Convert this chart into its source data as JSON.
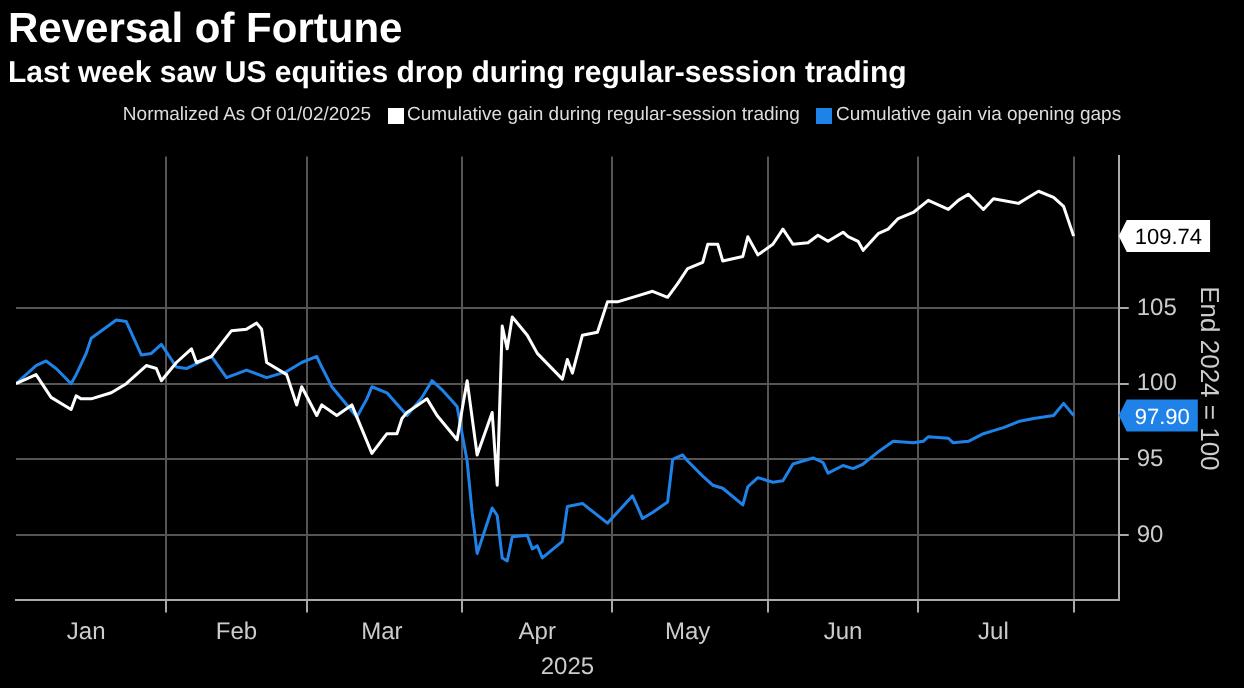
{
  "chart_data": {
    "type": "line",
    "title": "Reversal of Fortune",
    "subtitle": "Last week saw US equities drop during regular-session trading",
    "legend_title": "Normalized As Of 01/02/2025",
    "xlabel": "2025",
    "ylabel": "End 2024 = 100",
    "legend": "top",
    "grid": true,
    "line_style": "solid",
    "marker": "none",
    "xlim": [
      "2025-01-02",
      "2025-08-10"
    ],
    "xticks": [
      {
        "value": "2025-01-16",
        "label": "Jan"
      },
      {
        "value": "2025-02-01",
        "label": null
      },
      {
        "value": "2025-02-15",
        "label": "Feb"
      },
      {
        "value": "2025-03-01",
        "label": null
      },
      {
        "value": "2025-03-16",
        "label": "Mar"
      },
      {
        "value": "2025-04-01",
        "label": null
      },
      {
        "value": "2025-04-16",
        "label": "Apr"
      },
      {
        "value": "2025-05-01",
        "label": null
      },
      {
        "value": "2025-05-16",
        "label": "May"
      },
      {
        "value": "2025-06-01",
        "label": null
      },
      {
        "value": "2025-06-16",
        "label": "Jun"
      },
      {
        "value": "2025-07-01",
        "label": null
      },
      {
        "value": "2025-07-16",
        "label": "Jul"
      },
      {
        "value": "2025-08-01",
        "label": null
      }
    ],
    "ylim": [
      85.7,
      115
    ],
    "yticks": [
      90,
      95,
      100,
      105
    ],
    "annotations": [
      {
        "text": "109.74",
        "x": "2025-08-01",
        "y": 109.74
      },
      {
        "text": "97.90",
        "x": "2025-08-01",
        "y": 97.9
      }
    ],
    "series": [
      {
        "name": "Cumulative gain during regular-session trading",
        "color": "#ffffff",
        "x": [
          "2025-01-02",
          "2025-01-06",
          "2025-01-09",
          "2025-01-13",
          "2025-01-14",
          "2025-01-15",
          "2025-01-17",
          "2025-01-21",
          "2025-01-24",
          "2025-01-28",
          "2025-01-30",
          "2025-01-31",
          "2025-02-03",
          "2025-02-06",
          "2025-02-07",
          "2025-02-10",
          "2025-02-14",
          "2025-02-17",
          "2025-02-19",
          "2025-02-20",
          "2025-02-21",
          "2025-02-25",
          "2025-02-27",
          "2025-02-28",
          "2025-03-03",
          "2025-03-04",
          "2025-03-07",
          "2025-03-10",
          "2025-03-14",
          "2025-03-17",
          "2025-03-19",
          "2025-03-20",
          "2025-03-21",
          "2025-03-25",
          "2025-03-27",
          "2025-03-31",
          "2025-04-01",
          "2025-04-02",
          "2025-04-04",
          "2025-04-07",
          "2025-04-08",
          "2025-04-09",
          "2025-04-10",
          "2025-04-11",
          "2025-04-14",
          "2025-04-16",
          "2025-04-21",
          "2025-04-22",
          "2025-04-23",
          "2025-04-25",
          "2025-04-28",
          "2025-04-30",
          "2025-05-02",
          "2025-05-06",
          "2025-05-09",
          "2025-05-12",
          "2025-05-14",
          "2025-05-16",
          "2025-05-19",
          "2025-05-20",
          "2025-05-22",
          "2025-05-23",
          "2025-05-27",
          "2025-05-28",
          "2025-05-30",
          "2025-06-02",
          "2025-06-04",
          "2025-06-06",
          "2025-06-09",
          "2025-06-11",
          "2025-06-13",
          "2025-06-16",
          "2025-06-17",
          "2025-06-19",
          "2025-06-20",
          "2025-06-23",
          "2025-06-25",
          "2025-06-27",
          "2025-06-30",
          "2025-07-03",
          "2025-07-07",
          "2025-07-09",
          "2025-07-11",
          "2025-07-14",
          "2025-07-16",
          "2025-07-21",
          "2025-07-23",
          "2025-07-25",
          "2025-07-28",
          "2025-07-30",
          "2025-08-01"
        ],
        "values": [
          100.0,
          100.6,
          99.1,
          98.3,
          99.2,
          99.0,
          99.0,
          99.4,
          100.0,
          101.2,
          101.0,
          100.2,
          101.4,
          102.3,
          101.4,
          101.8,
          103.5,
          103.6,
          104.0,
          103.6,
          101.4,
          100.6,
          98.6,
          99.8,
          97.9,
          98.6,
          97.9,
          98.6,
          95.4,
          96.7,
          96.7,
          97.7,
          98.1,
          99.0,
          97.9,
          96.3,
          98.3,
          100.2,
          95.3,
          98.1,
          93.3,
          103.8,
          102.3,
          104.4,
          103.2,
          102.0,
          100.3,
          101.6,
          100.7,
          103.2,
          103.4,
          105.4,
          105.4,
          105.8,
          106.1,
          105.7,
          106.6,
          107.6,
          108.0,
          109.2,
          109.2,
          108.1,
          108.4,
          109.7,
          108.5,
          109.2,
          110.2,
          109.2,
          109.3,
          109.8,
          109.4,
          110.0,
          109.7,
          109.4,
          108.8,
          109.9,
          110.2,
          110.9,
          111.3,
          112.1,
          111.5,
          112.1,
          112.5,
          111.5,
          112.2,
          111.9,
          112.3,
          112.7,
          112.3,
          111.7,
          109.74
        ]
      },
      {
        "name": "Cumulative gain via opening gaps",
        "color": "#1f82e8",
        "x": [
          "2025-01-02",
          "2025-01-06",
          "2025-01-08",
          "2025-01-10",
          "2025-01-13",
          "2025-01-14",
          "2025-01-16",
          "2025-01-17",
          "2025-01-22",
          "2025-01-24",
          "2025-01-27",
          "2025-01-29",
          "2025-01-31",
          "2025-02-03",
          "2025-02-05",
          "2025-02-10",
          "2025-02-13",
          "2025-02-17",
          "2025-02-21",
          "2025-02-25",
          "2025-02-28",
          "2025-03-03",
          "2025-03-04",
          "2025-03-06",
          "2025-03-11",
          "2025-03-13",
          "2025-03-14",
          "2025-03-17",
          "2025-03-21",
          "2025-03-24",
          "2025-03-26",
          "2025-03-28",
          "2025-03-31",
          "2025-04-02",
          "2025-04-03",
          "2025-04-04",
          "2025-04-07",
          "2025-04-08",
          "2025-04-09",
          "2025-04-10",
          "2025-04-11",
          "2025-04-14",
          "2025-04-15",
          "2025-04-16",
          "2025-04-17",
          "2025-04-21",
          "2025-04-22",
          "2025-04-25",
          "2025-04-30",
          "2025-05-05",
          "2025-05-07",
          "2025-05-09",
          "2025-05-12",
          "2025-05-13",
          "2025-05-15",
          "2025-05-16",
          "2025-05-19",
          "2025-05-21",
          "2025-05-23",
          "2025-05-27",
          "2025-05-28",
          "2025-05-30",
          "2025-06-02",
          "2025-06-04",
          "2025-06-06",
          "2025-06-10",
          "2025-06-12",
          "2025-06-13",
          "2025-06-16",
          "2025-06-18",
          "2025-06-20",
          "2025-06-23",
          "2025-06-26",
          "2025-06-30",
          "2025-07-02",
          "2025-07-03",
          "2025-07-07",
          "2025-07-08",
          "2025-07-11",
          "2025-07-14",
          "2025-07-16",
          "2025-07-18",
          "2025-07-21",
          "2025-07-24",
          "2025-07-28",
          "2025-07-30",
          "2025-08-01"
        ],
        "values": [
          100.0,
          101.2,
          101.5,
          101.0,
          100.0,
          100.6,
          102.0,
          103.0,
          104.2,
          104.1,
          101.9,
          102.0,
          102.6,
          101.1,
          101.0,
          101.8,
          100.4,
          100.9,
          100.4,
          100.8,
          101.4,
          101.8,
          101.1,
          99.8,
          97.8,
          99.0,
          99.8,
          99.4,
          97.9,
          99.1,
          100.2,
          99.6,
          98.5,
          94.9,
          91.5,
          88.8,
          91.8,
          91.3,
          88.5,
          88.3,
          89.9,
          90.0,
          89.1,
          89.3,
          88.5,
          89.6,
          91.9,
          92.1,
          90.8,
          92.6,
          91.1,
          91.5,
          92.2,
          95.0,
          95.3,
          94.9,
          93.9,
          93.3,
          93.1,
          92.0,
          93.2,
          93.8,
          93.5,
          93.6,
          94.7,
          95.1,
          94.8,
          94.1,
          94.6,
          94.4,
          94.7,
          95.5,
          96.2,
          96.1,
          96.2,
          96.5,
          96.4,
          96.1,
          96.2,
          96.7,
          96.9,
          97.1,
          97.5,
          97.7,
          97.9,
          98.7,
          97.9
        ]
      }
    ]
  }
}
